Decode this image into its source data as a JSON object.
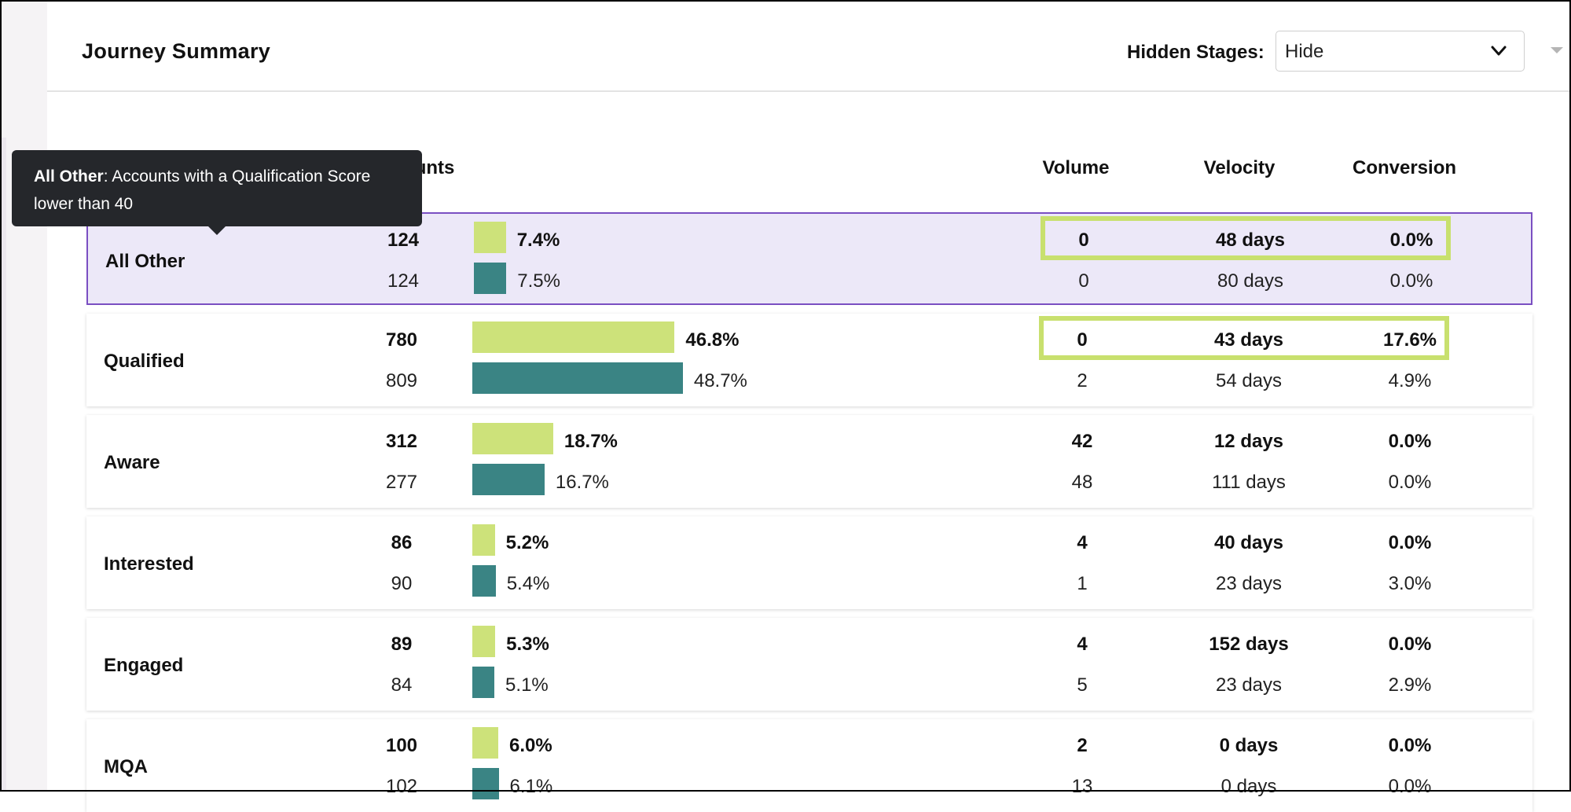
{
  "header": {
    "title": "Journey Summary",
    "hidden_stages_label": "Hidden Stages:",
    "hidden_stages_value": "Hide"
  },
  "columns": {
    "accounts": "Accounts",
    "volume": "Volume",
    "velocity": "Velocity",
    "conversion": "Conversion"
  },
  "tooltip": {
    "term": "All Other",
    "text": ": Accounts with a Qualification Score lower than 40"
  },
  "colors": {
    "current_bar": "#cde27a",
    "previous_bar": "#3a8484",
    "selected_border": "#7a4fc2",
    "highlight_border": "#c8e06e"
  },
  "rows": [
    {
      "stage": "All Other",
      "accounts": [
        "124",
        "124"
      ],
      "share": [
        7.4,
        7.5
      ],
      "share_label": [
        "7.4%",
        "7.5%"
      ],
      "volume": [
        "0",
        "0"
      ],
      "velocity": [
        "48 days",
        "80 days"
      ],
      "conversion": [
        "0.0%",
        "0.0%"
      ],
      "selected": true,
      "highlighted": true
    },
    {
      "stage": "Qualified",
      "accounts": [
        "780",
        "809"
      ],
      "share": [
        46.8,
        48.7
      ],
      "share_label": [
        "46.8%",
        "48.7%"
      ],
      "volume": [
        "0",
        "2"
      ],
      "velocity": [
        "43 days",
        "54 days"
      ],
      "conversion": [
        "17.6%",
        "4.9%"
      ],
      "selected": false,
      "highlighted": true
    },
    {
      "stage": "Aware",
      "accounts": [
        "312",
        "277"
      ],
      "share": [
        18.7,
        16.7
      ],
      "share_label": [
        "18.7%",
        "16.7%"
      ],
      "volume": [
        "42",
        "48"
      ],
      "velocity": [
        "12 days",
        "111 days"
      ],
      "conversion": [
        "0.0%",
        "0.0%"
      ],
      "selected": false,
      "highlighted": false
    },
    {
      "stage": "Interested",
      "accounts": [
        "86",
        "90"
      ],
      "share": [
        5.2,
        5.4
      ],
      "share_label": [
        "5.2%",
        "5.4%"
      ],
      "volume": [
        "4",
        "1"
      ],
      "velocity": [
        "40 days",
        "23 days"
      ],
      "conversion": [
        "0.0%",
        "3.0%"
      ],
      "selected": false,
      "highlighted": false
    },
    {
      "stage": "Engaged",
      "accounts": [
        "89",
        "84"
      ],
      "share": [
        5.3,
        5.1
      ],
      "share_label": [
        "5.3%",
        "5.1%"
      ],
      "volume": [
        "4",
        "5"
      ],
      "velocity": [
        "152 days",
        "23 days"
      ],
      "conversion": [
        "0.0%",
        "2.9%"
      ],
      "selected": false,
      "highlighted": false
    },
    {
      "stage": "MQA",
      "accounts": [
        "100",
        "102"
      ],
      "share": [
        6.0,
        6.1
      ],
      "share_label": [
        "6.0%",
        "6.1%"
      ],
      "volume": [
        "2",
        "13"
      ],
      "velocity": [
        "0 days",
        "0 days"
      ],
      "conversion": [
        "0.0%",
        "0.0%"
      ],
      "selected": false,
      "highlighted": false
    }
  ]
}
